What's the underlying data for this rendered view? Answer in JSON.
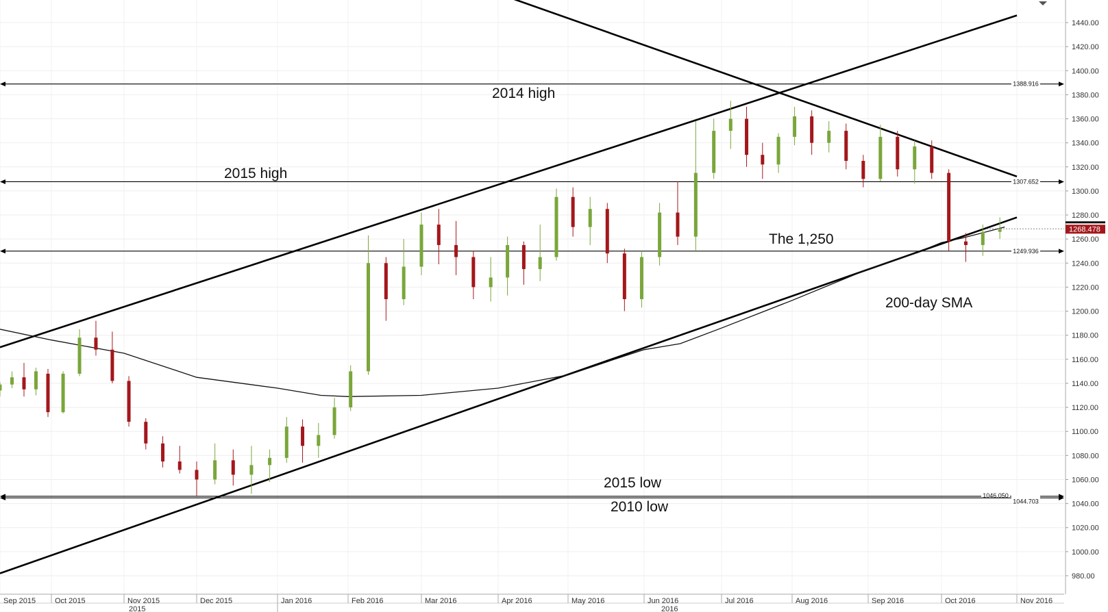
{
  "chart_data": {
    "type": "candlestick",
    "y_axis": {
      "side": "right",
      "range": [
        970,
        1455
      ],
      "ticks": [
        "980.00",
        "1000.00",
        "1020.00",
        "1040.00",
        "1060.00",
        "1080.00",
        "1100.00",
        "1120.00",
        "1140.00",
        "1160.00",
        "1180.00",
        "1200.00",
        "1220.00",
        "1240.00",
        "1260.00",
        "1280.00",
        "1300.00",
        "1320.00",
        "1340.00",
        "1360.00",
        "1380.00",
        "1400.00",
        "1420.00",
        "1440.00"
      ]
    },
    "x_axis": {
      "months": [
        "Sep 2015",
        "Oct 2015",
        "Nov 2015",
        "Dec 2015",
        "Jan 2016",
        "Feb 2016",
        "Mar 2016",
        "Apr 2016",
        "May 2016",
        "Jun 2016",
        "Jul 2016",
        "Aug 2016",
        "Sep 2016",
        "Oct 2016",
        "Nov 2016"
      ],
      "years": [
        "2015",
        "2016"
      ]
    },
    "horizontal_levels": [
      {
        "value": 1388.916,
        "label": "1388.916"
      },
      {
        "value": 1307.652,
        "label": "1307.652"
      },
      {
        "value": 1249.936,
        "label": "1249.936"
      },
      {
        "value": 1046.05,
        "label": "1046.050"
      },
      {
        "value": 1044.703,
        "label": "1044.703"
      }
    ],
    "current_price": {
      "value": 1268.478,
      "label": "1268.478"
    },
    "annotations": [
      {
        "text": "2014 high"
      },
      {
        "text": "2015 high"
      },
      {
        "text": "The 1,250"
      },
      {
        "text": "200-day SMA"
      },
      {
        "text": "2015 low"
      },
      {
        "text": "2010 low"
      }
    ],
    "sma_200_points": [
      [
        "2015-09-01",
        1185
      ],
      [
        "2015-10-01",
        1176
      ],
      [
        "2015-11-01",
        1165
      ],
      [
        "2015-12-01",
        1145
      ],
      [
        "2016-01-01",
        1136
      ],
      [
        "2016-01-20",
        1130
      ],
      [
        "2016-02-01",
        1129
      ],
      [
        "2016-03-01",
        1130
      ],
      [
        "2016-04-01",
        1136
      ],
      [
        "2016-05-01",
        1147
      ],
      [
        "2016-05-20",
        1160
      ],
      [
        "2016-06-01",
        1168
      ],
      [
        "2016-06-15",
        1173
      ],
      [
        "2016-07-01",
        1186
      ],
      [
        "2016-08-01",
        1209
      ],
      [
        "2016-09-01",
        1235
      ],
      [
        "2016-09-20",
        1248
      ],
      [
        "2016-10-01",
        1257
      ],
      [
        "2016-10-10",
        1261
      ],
      [
        "2016-10-27",
        1270
      ]
    ],
    "candles": [
      {
        "d": "2015-09-01",
        "o": 1134,
        "h": 1141,
        "l": 1129,
        "c": 1139
      },
      {
        "d": "2015-09-08",
        "o": 1139,
        "h": 1150,
        "l": 1136,
        "c": 1145
      },
      {
        "d": "2015-09-15",
        "o": 1145,
        "h": 1157,
        "l": 1129,
        "c": 1135
      },
      {
        "d": "2015-09-22",
        "o": 1135,
        "h": 1153,
        "l": 1130,
        "c": 1150
      },
      {
        "d": "2015-09-29",
        "o": 1148,
        "h": 1152,
        "l": 1112,
        "c": 1116
      },
      {
        "d": "2015-10-06",
        "o": 1116,
        "h": 1150,
        "l": 1115,
        "c": 1148
      },
      {
        "d": "2015-10-13",
        "o": 1148,
        "h": 1185,
        "l": 1146,
        "c": 1178
      },
      {
        "d": "2015-10-20",
        "o": 1178,
        "h": 1192,
        "l": 1163,
        "c": 1168
      },
      {
        "d": "2015-10-27",
        "o": 1168,
        "h": 1183,
        "l": 1140,
        "c": 1142
      },
      {
        "d": "2015-11-03",
        "o": 1142,
        "h": 1146,
        "l": 1104,
        "c": 1108
      },
      {
        "d": "2015-11-10",
        "o": 1108,
        "h": 1111,
        "l": 1085,
        "c": 1090
      },
      {
        "d": "2015-11-17",
        "o": 1090,
        "h": 1096,
        "l": 1070,
        "c": 1075
      },
      {
        "d": "2015-11-24",
        "o": 1075,
        "h": 1088,
        "l": 1065,
        "c": 1068
      },
      {
        "d": "2015-12-01",
        "o": 1068,
        "h": 1075,
        "l": 1046,
        "c": 1060
      },
      {
        "d": "2015-12-08",
        "o": 1060,
        "h": 1090,
        "l": 1056,
        "c": 1076
      },
      {
        "d": "2015-12-15",
        "o": 1076,
        "h": 1085,
        "l": 1055,
        "c": 1064
      },
      {
        "d": "2015-12-22",
        "o": 1064,
        "h": 1088,
        "l": 1048,
        "c": 1072
      },
      {
        "d": "2015-12-29",
        "o": 1072,
        "h": 1085,
        "l": 1058,
        "c": 1078
      },
      {
        "d": "2016-01-05",
        "o": 1078,
        "h": 1112,
        "l": 1074,
        "c": 1104
      },
      {
        "d": "2016-01-12",
        "o": 1104,
        "h": 1110,
        "l": 1074,
        "c": 1088
      },
      {
        "d": "2016-01-19",
        "o": 1088,
        "h": 1107,
        "l": 1078,
        "c": 1097
      },
      {
        "d": "2016-01-26",
        "o": 1097,
        "h": 1128,
        "l": 1094,
        "c": 1120
      },
      {
        "d": "2016-02-02",
        "o": 1120,
        "h": 1155,
        "l": 1117,
        "c": 1150
      },
      {
        "d": "2016-02-09",
        "o": 1150,
        "h": 1263,
        "l": 1147,
        "c": 1240
      },
      {
        "d": "2016-02-16",
        "o": 1240,
        "h": 1245,
        "l": 1192,
        "c": 1210
      },
      {
        "d": "2016-02-23",
        "o": 1210,
        "h": 1260,
        "l": 1205,
        "c": 1237
      },
      {
        "d": "2016-03-01",
        "o": 1237,
        "h": 1282,
        "l": 1230,
        "c": 1272
      },
      {
        "d": "2016-03-08",
        "o": 1272,
        "h": 1285,
        "l": 1239,
        "c": 1255
      },
      {
        "d": "2016-03-15",
        "o": 1255,
        "h": 1275,
        "l": 1230,
        "c": 1245
      },
      {
        "d": "2016-03-22",
        "o": 1245,
        "h": 1250,
        "l": 1210,
        "c": 1220
      },
      {
        "d": "2016-03-29",
        "o": 1220,
        "h": 1245,
        "l": 1208,
        "c": 1228
      },
      {
        "d": "2016-04-05",
        "o": 1228,
        "h": 1262,
        "l": 1213,
        "c": 1255
      },
      {
        "d": "2016-04-12",
        "o": 1255,
        "h": 1258,
        "l": 1222,
        "c": 1235
      },
      {
        "d": "2016-04-19",
        "o": 1235,
        "h": 1272,
        "l": 1225,
        "c": 1245
      },
      {
        "d": "2016-04-26",
        "o": 1245,
        "h": 1302,
        "l": 1242,
        "c": 1295
      },
      {
        "d": "2016-05-03",
        "o": 1295,
        "h": 1303,
        "l": 1262,
        "c": 1270
      },
      {
        "d": "2016-05-10",
        "o": 1270,
        "h": 1295,
        "l": 1255,
        "c": 1285
      },
      {
        "d": "2016-05-17",
        "o": 1285,
        "h": 1290,
        "l": 1240,
        "c": 1248
      },
      {
        "d": "2016-05-24",
        "o": 1248,
        "h": 1252,
        "l": 1200,
        "c": 1210
      },
      {
        "d": "2016-05-31",
        "o": 1210,
        "h": 1250,
        "l": 1203,
        "c": 1245
      },
      {
        "d": "2016-06-07",
        "o": 1245,
        "h": 1290,
        "l": 1238,
        "c": 1282
      },
      {
        "d": "2016-06-14",
        "o": 1282,
        "h": 1308,
        "l": 1255,
        "c": 1262
      },
      {
        "d": "2016-06-21",
        "o": 1262,
        "h": 1358,
        "l": 1250,
        "c": 1315
      },
      {
        "d": "2016-06-28",
        "o": 1315,
        "h": 1360,
        "l": 1310,
        "c": 1350
      },
      {
        "d": "2016-07-05",
        "o": 1350,
        "h": 1375,
        "l": 1335,
        "c": 1360
      },
      {
        "d": "2016-07-12",
        "o": 1360,
        "h": 1370,
        "l": 1320,
        "c": 1330
      },
      {
        "d": "2016-07-19",
        "o": 1330,
        "h": 1340,
        "l": 1310,
        "c": 1322
      },
      {
        "d": "2016-07-26",
        "o": 1322,
        "h": 1348,
        "l": 1315,
        "c": 1345
      },
      {
        "d": "2016-08-02",
        "o": 1345,
        "h": 1370,
        "l": 1338,
        "c": 1362
      },
      {
        "d": "2016-08-09",
        "o": 1362,
        "h": 1367,
        "l": 1330,
        "c": 1340
      },
      {
        "d": "2016-08-16",
        "o": 1340,
        "h": 1358,
        "l": 1332,
        "c": 1350
      },
      {
        "d": "2016-08-23",
        "o": 1350,
        "h": 1356,
        "l": 1318,
        "c": 1325
      },
      {
        "d": "2016-08-30",
        "o": 1325,
        "h": 1330,
        "l": 1303,
        "c": 1310
      },
      {
        "d": "2016-09-06",
        "o": 1310,
        "h": 1355,
        "l": 1308,
        "c": 1345
      },
      {
        "d": "2016-09-13",
        "o": 1345,
        "h": 1350,
        "l": 1312,
        "c": 1318
      },
      {
        "d": "2016-09-20",
        "o": 1318,
        "h": 1342,
        "l": 1306,
        "c": 1337
      },
      {
        "d": "2016-09-27",
        "o": 1337,
        "h": 1342,
        "l": 1310,
        "c": 1315
      },
      {
        "d": "2016-10-04",
        "o": 1315,
        "h": 1318,
        "l": 1250,
        "c": 1258
      },
      {
        "d": "2016-10-11",
        "o": 1258,
        "h": 1265,
        "l": 1241,
        "c": 1255
      },
      {
        "d": "2016-10-18",
        "o": 1255,
        "h": 1272,
        "l": 1246,
        "c": 1266
      },
      {
        "d": "2016-10-25",
        "o": 1266,
        "h": 1278,
        "l": 1260,
        "c": 1268
      }
    ]
  }
}
